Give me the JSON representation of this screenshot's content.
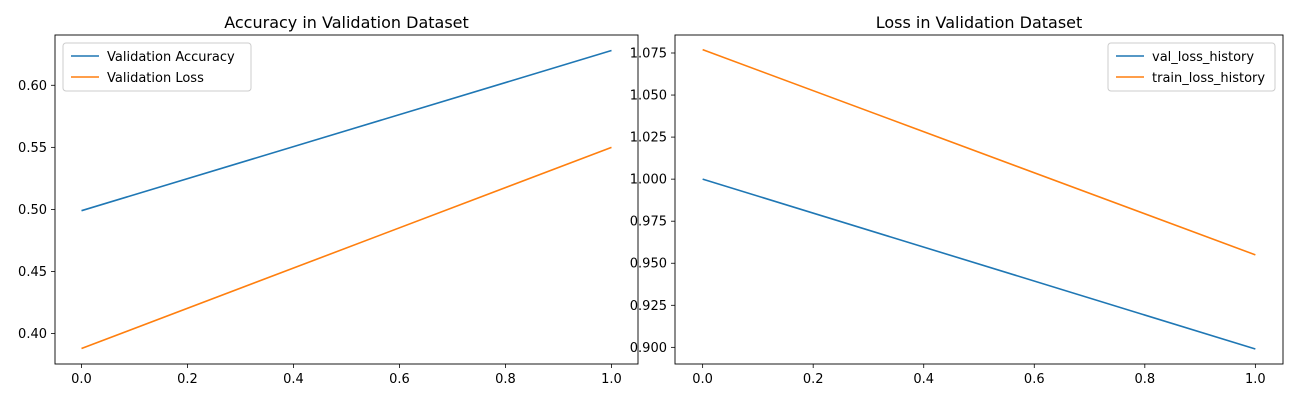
{
  "chart_data": [
    {
      "type": "line",
      "title": "Accuracy in Validation Dataset",
      "xlabel": "",
      "ylabel": "",
      "xlim": [
        -0.05,
        1.05
      ],
      "ylim": [
        0.3755,
        0.6405
      ],
      "xticks": [
        0.0,
        0.2,
        0.4,
        0.6,
        0.8,
        1.0
      ],
      "xtick_labels": [
        "0.0",
        "0.2",
        "0.4",
        "0.6",
        "0.8",
        "1.0"
      ],
      "yticks": [
        0.4,
        0.45,
        0.5,
        0.55,
        0.6
      ],
      "ytick_labels": [
        "0.40",
        "0.45",
        "0.50",
        "0.55",
        "0.60"
      ],
      "grid": false,
      "legend": "upper left",
      "series": [
        {
          "name": "Validation Accuracy",
          "color": "#1f77b4",
          "x": [
            0,
            1
          ],
          "values": [
            0.499,
            0.628
          ]
        },
        {
          "name": "Validation Loss",
          "color": "#ff7f0e",
          "x": [
            0,
            1
          ],
          "values": [
            0.388,
            0.55
          ]
        }
      ]
    },
    {
      "type": "line",
      "title": "Loss in Validation Dataset",
      "xlabel": "",
      "ylabel": "",
      "xlim": [
        -0.05,
        1.05
      ],
      "ylim": [
        0.8901,
        1.0857
      ],
      "xticks": [
        0.0,
        0.2,
        0.4,
        0.6,
        0.8,
        1.0
      ],
      "xtick_labels": [
        "0.0",
        "0.2",
        "0.4",
        "0.6",
        "0.8",
        "1.0"
      ],
      "yticks": [
        0.9,
        0.925,
        0.95,
        0.975,
        1.0,
        1.025,
        1.05,
        1.075
      ],
      "ytick_labels": [
        "0.900",
        "0.925",
        "0.950",
        "0.975",
        "1.000",
        "1.025",
        "1.050",
        "1.075"
      ],
      "grid": false,
      "legend": "upper right",
      "series": [
        {
          "name": "val_loss_history",
          "color": "#1f77b4",
          "x": [
            0,
            1
          ],
          "values": [
            1.0,
            0.899
          ]
        },
        {
          "name": "train_loss_history",
          "color": "#ff7f0e",
          "x": [
            0,
            1
          ],
          "values": [
            1.077,
            0.955
          ]
        }
      ]
    }
  ]
}
